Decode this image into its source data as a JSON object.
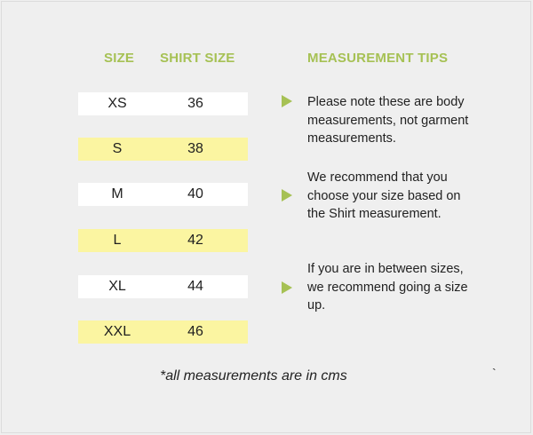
{
  "headers": {
    "size": "SIZE",
    "shirt_size": "SHIRT SIZE",
    "tips": "MEASUREMENT TIPS"
  },
  "rows": [
    {
      "size": "XS",
      "shirt": "36"
    },
    {
      "size": "S",
      "shirt": "38"
    },
    {
      "size": "M",
      "shirt": "40"
    },
    {
      "size": "L",
      "shirt": "42"
    },
    {
      "size": "XL",
      "shirt": "44"
    },
    {
      "size": "XXL",
      "shirt": "46"
    }
  ],
  "tips": [
    "Please note these are body measurements, not garment measurements.",
    "We recommend that you choose your size based on the Shirt measurement.",
    "If you are in between sizes, we recommend going a size up."
  ],
  "note": "*all measurements are in cms",
  "stray_mark": "`",
  "colors": {
    "accent": "#a6c154",
    "highlight_row": "#fbf5a1",
    "plain_row": "#ffffff",
    "background": "#efefef"
  }
}
